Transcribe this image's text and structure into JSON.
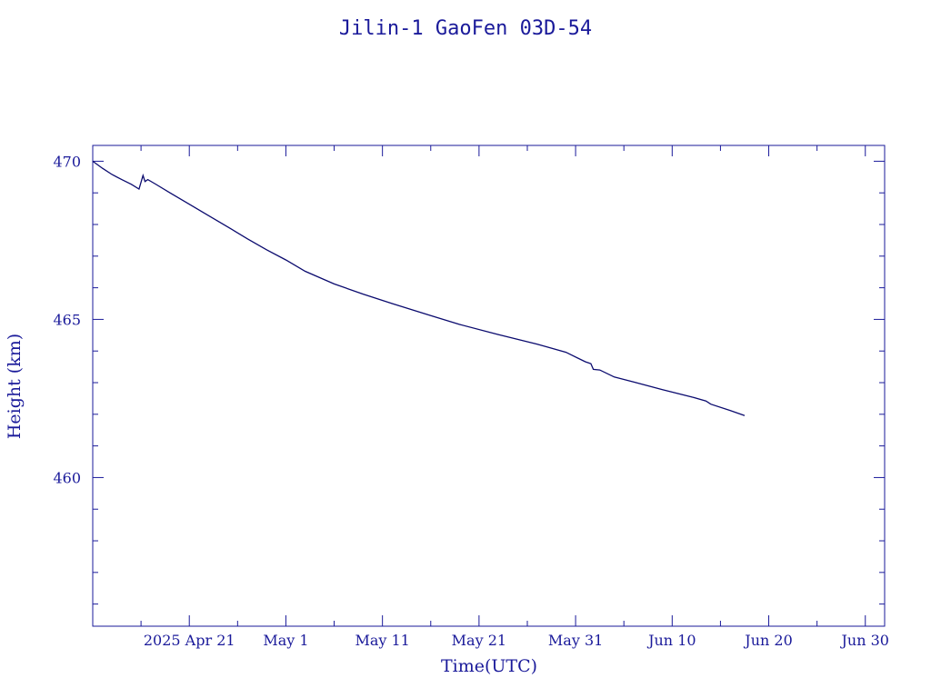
{
  "colors": {
    "ink": "#1a1a9a",
    "line": "#0a0a6e",
    "background": "#ffffff"
  },
  "chart_data": {
    "type": "line",
    "title": "Jilin-1 GaoFen 03D-54",
    "xlabel": "Time(UTC)",
    "ylabel": "Height (km)",
    "x_axis": {
      "type": "date",
      "range": [
        "2025-04-11",
        "2025-07-02"
      ],
      "ticks": [
        {
          "date": "2025-04-21",
          "label": "2025 Apr 21"
        },
        {
          "date": "2025-05-01",
          "label": "May  1"
        },
        {
          "date": "2025-05-11",
          "label": "May 11"
        },
        {
          "date": "2025-05-21",
          "label": "May 21"
        },
        {
          "date": "2025-05-31",
          "label": "May 31"
        },
        {
          "date": "2025-06-10",
          "label": "Jun 10"
        },
        {
          "date": "2025-06-20",
          "label": "Jun 20"
        },
        {
          "date": "2025-06-30",
          "label": "Jun 30"
        }
      ],
      "minor_ticks": [
        "2025-04-16",
        "2025-04-26",
        "2025-05-06",
        "2025-05-16",
        "2025-05-26",
        "2025-06-05",
        "2025-06-15",
        "2025-06-25"
      ]
    },
    "y_axis": {
      "range": [
        455.3,
        470.5
      ],
      "major_ticks": [
        460,
        465,
        470
      ],
      "minor_ticks": [
        456,
        457,
        458,
        459,
        461,
        462,
        463,
        464,
        466,
        467,
        468,
        469
      ]
    },
    "grid": false,
    "series": [
      {
        "points": [
          [
            "2025-04-11 00:00",
            470.0
          ],
          [
            "2025-04-12 00:00",
            469.78
          ],
          [
            "2025-04-13 00:00",
            469.58
          ],
          [
            "2025-04-14 00:00",
            469.42
          ],
          [
            "2025-04-15 00:00",
            469.27
          ],
          [
            "2025-04-15 19:00",
            469.12
          ],
          [
            "2025-04-16 05:00",
            469.55
          ],
          [
            "2025-04-16 10:00",
            469.36
          ],
          [
            "2025-04-16 17:00",
            469.42
          ],
          [
            "2025-04-17 12:00",
            469.28
          ],
          [
            "2025-04-19 00:00",
            469.0
          ],
          [
            "2025-04-21 00:00",
            468.64
          ],
          [
            "2025-04-23 00:00",
            468.28
          ],
          [
            "2025-04-25 00:00",
            467.92
          ],
          [
            "2025-04-27 00:00",
            467.55
          ],
          [
            "2025-04-29 00:00",
            467.2
          ],
          [
            "2025-05-01 00:00",
            466.88
          ],
          [
            "2025-05-03 00:00",
            466.52
          ],
          [
            "2025-05-06 00:00",
            466.12
          ],
          [
            "2025-05-09 00:00",
            465.8
          ],
          [
            "2025-05-12 00:00",
            465.5
          ],
          [
            "2025-05-16 00:00",
            465.12
          ],
          [
            "2025-05-19 00:00",
            464.84
          ],
          [
            "2025-05-23 00:00",
            464.52
          ],
          [
            "2025-05-27 00:00",
            464.22
          ],
          [
            "2025-05-30 00:00",
            463.96
          ],
          [
            "2025-06-01 00:00",
            463.66
          ],
          [
            "2025-06-01 14:00",
            463.6
          ],
          [
            "2025-06-01 20:00",
            463.42
          ],
          [
            "2025-06-02 12:00",
            463.4
          ],
          [
            "2025-06-04 00:00",
            463.18
          ],
          [
            "2025-06-04 12:00",
            463.14
          ],
          [
            "2025-06-06 00:00",
            463.02
          ],
          [
            "2025-06-09 00:00",
            462.78
          ],
          [
            "2025-06-12 00:00",
            462.55
          ],
          [
            "2025-06-13 12:00",
            462.42
          ],
          [
            "2025-06-14 00:00",
            462.32
          ],
          [
            "2025-06-16 00:00",
            462.12
          ],
          [
            "2025-06-17 12:00",
            461.96
          ]
        ]
      }
    ]
  }
}
